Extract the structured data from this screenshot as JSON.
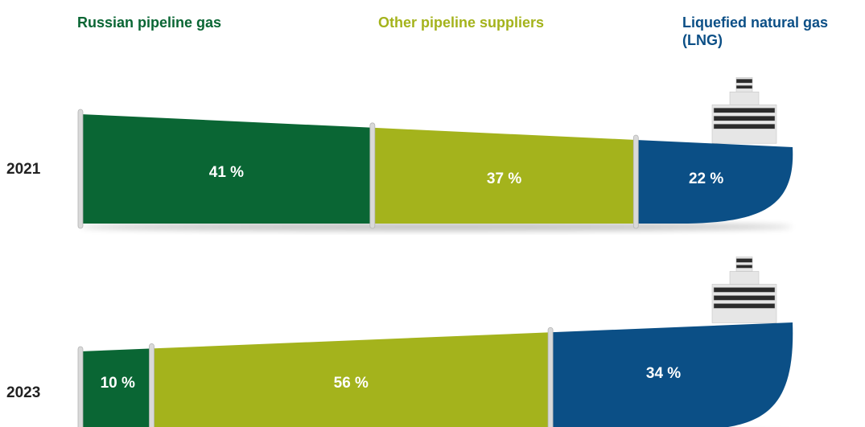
{
  "colors": {
    "russian": "#0a6634",
    "other": "#a4b31c",
    "lng": "#0b4f86",
    "divider": "#d9d9d9",
    "funnel_dark": "#2b2b2b",
    "funnel_light": "#e6e6e6"
  },
  "chart_data": {
    "type": "bar",
    "stacked": true,
    "orientation": "horizontal",
    "series": [
      {
        "name": "Russian pipeline gas",
        "values": [
          41,
          10
        ],
        "labels": [
          "41 %",
          "10 %"
        ]
      },
      {
        "name": "Other pipeline suppliers",
        "values": [
          37,
          56
        ],
        "labels": [
          "37 %",
          "56 %"
        ]
      },
      {
        "name": "Liquefied natural gas (LNG)",
        "values": [
          22,
          34
        ],
        "labels": [
          "22 %",
          "34 %"
        ]
      }
    ],
    "categories": [
      "2021",
      "2023"
    ],
    "unit": "%",
    "legend_position": "top"
  }
}
